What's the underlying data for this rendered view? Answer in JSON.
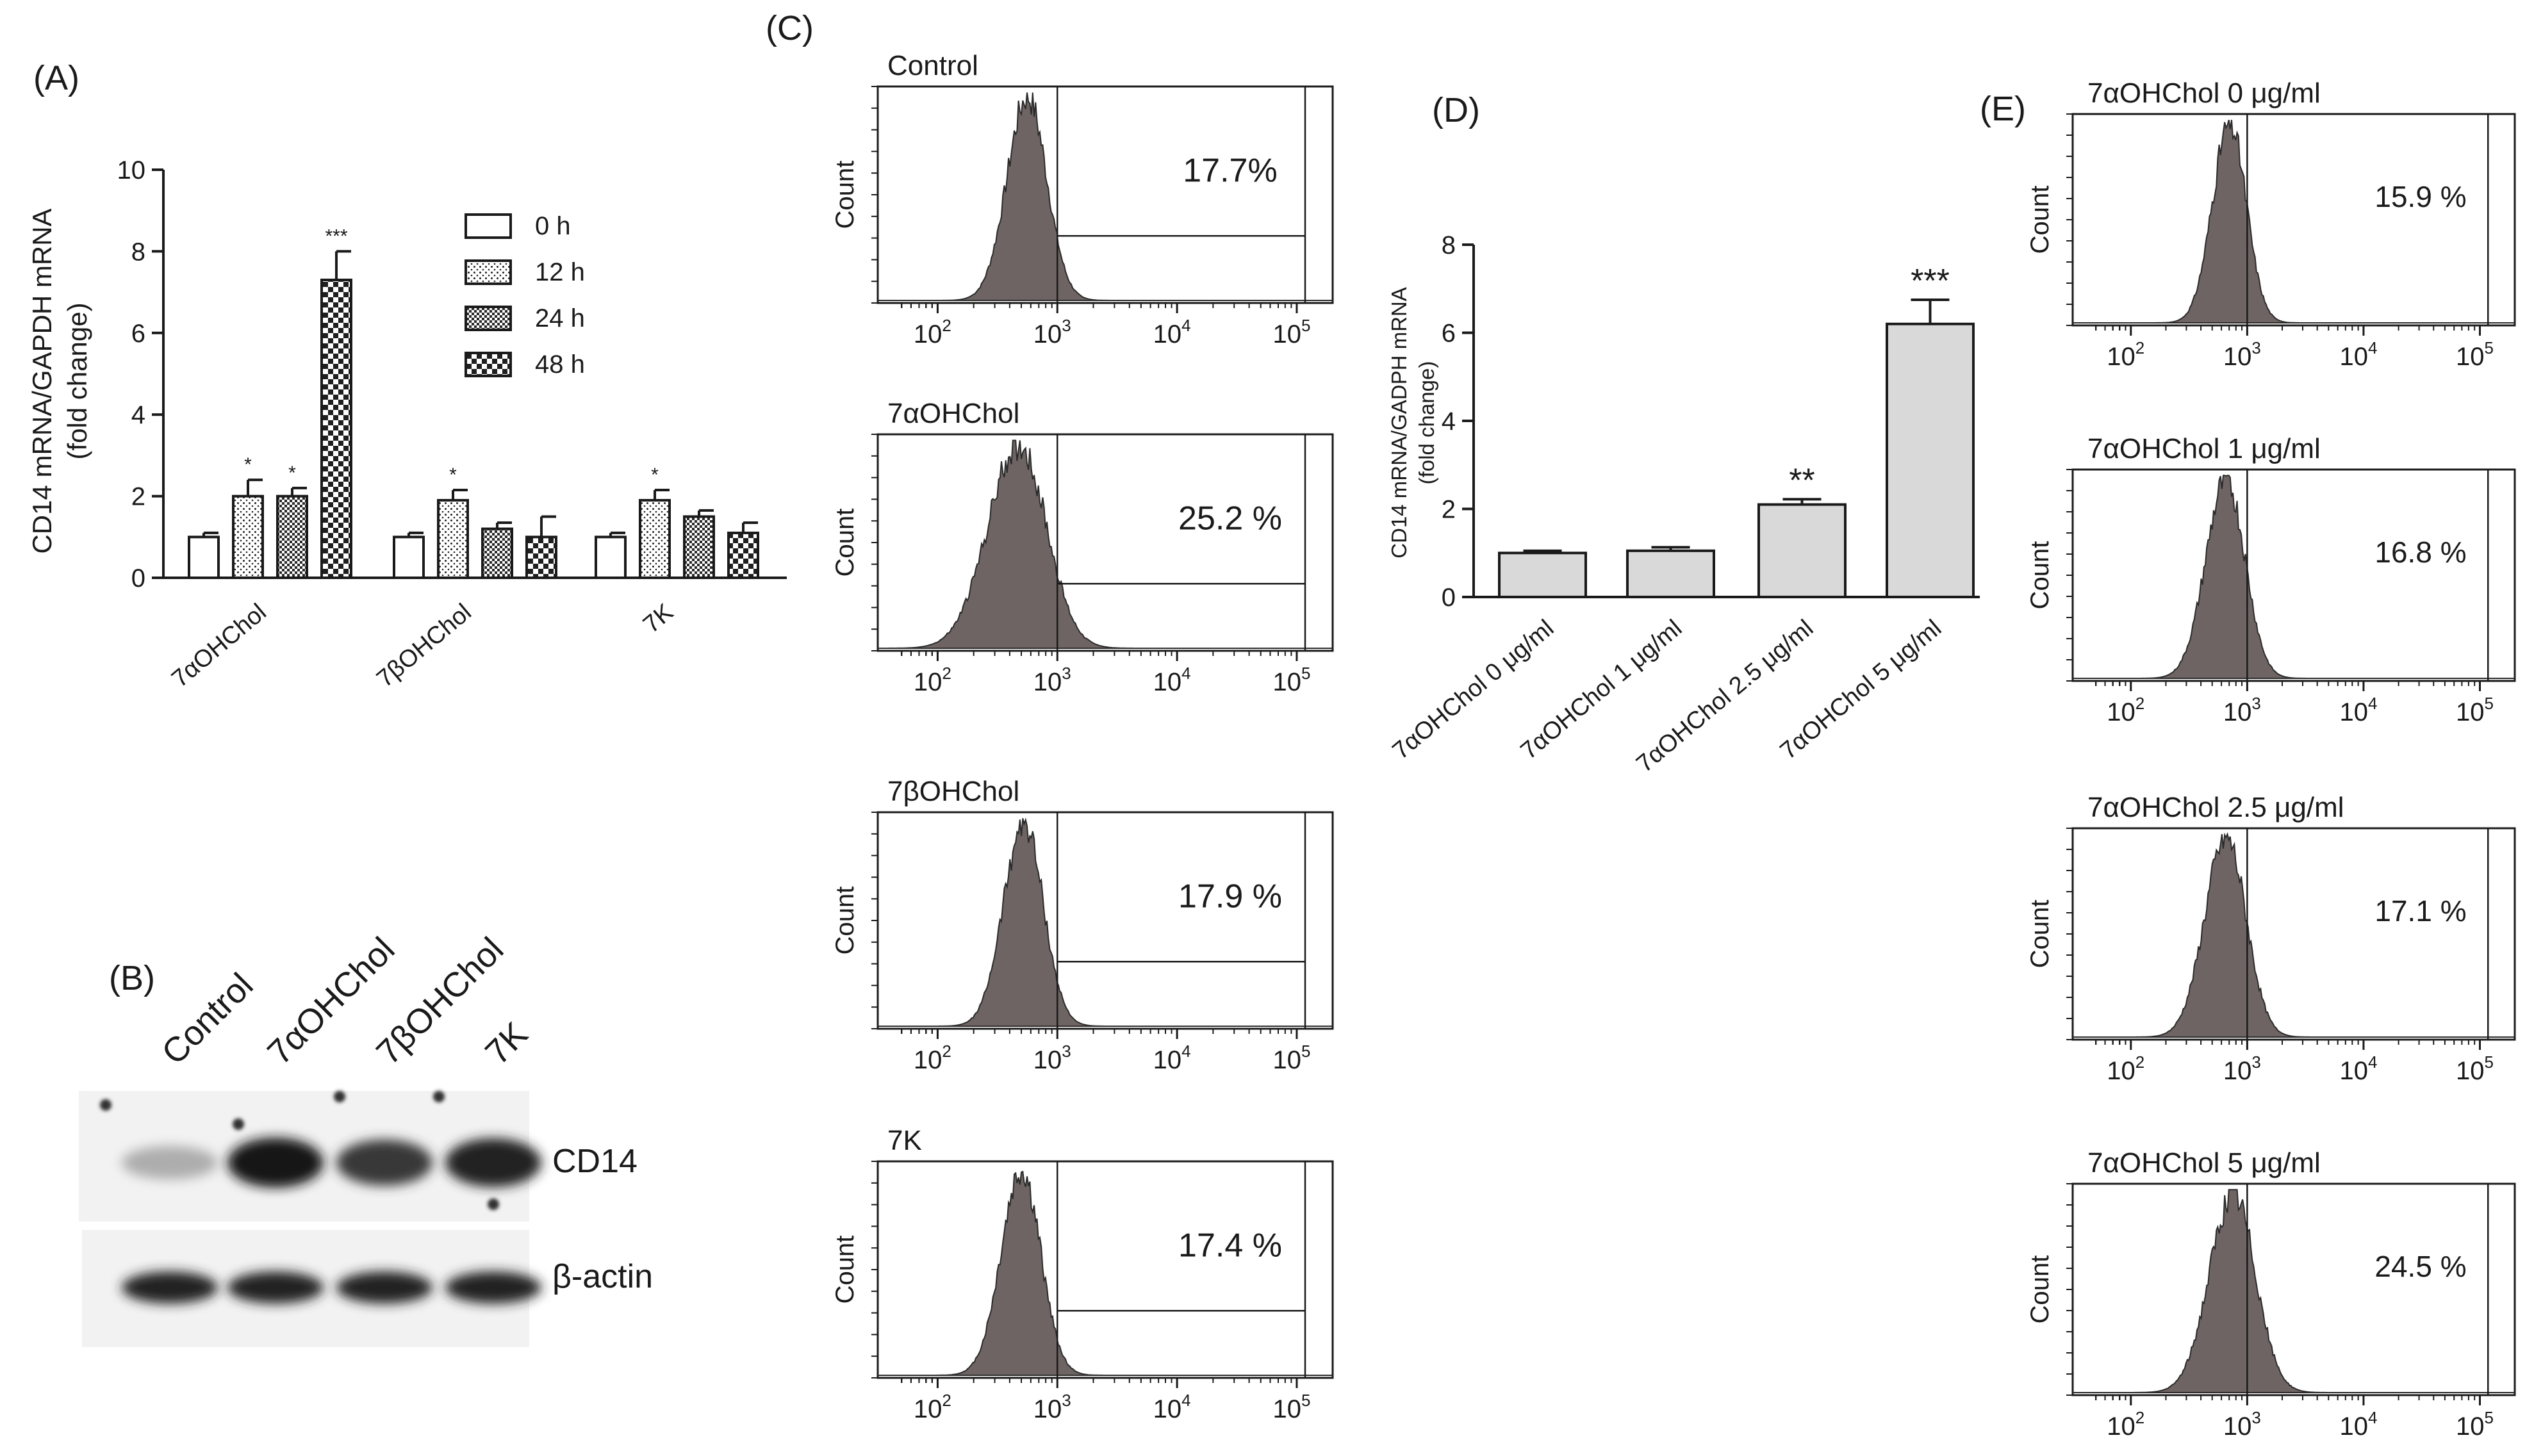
{
  "chart_data": [
    {
      "panel": "(A)",
      "type": "bar",
      "ylabel": "CD14 mRNA/GAPDH mRNA",
      "ylabel2": "(fold change)",
      "ylim": [
        0,
        10
      ],
      "yticks": [
        "0",
        "2",
        "4",
        "6",
        "8",
        "10"
      ],
      "categories": [
        "7αOHChol",
        "7βOHChol",
        "7K"
      ],
      "series": [
        {
          "name": "0 h",
          "pattern": "plain",
          "values": [
            1.0,
            1.0,
            1.0
          ],
          "errors": [
            0.1,
            0.1,
            0.1
          ],
          "stars": [
            "",
            "",
            ""
          ]
        },
        {
          "name": "12 h",
          "pattern": "dots",
          "values": [
            2.0,
            1.9,
            1.9
          ],
          "errors": [
            0.4,
            0.25,
            0.25
          ],
          "stars": [
            "*",
            "*",
            "*"
          ]
        },
        {
          "name": "24 h",
          "pattern": "check",
          "values": [
            2.0,
            1.2,
            1.5
          ],
          "errors": [
            0.2,
            0.15,
            0.15
          ],
          "stars": [
            "*",
            "",
            ""
          ]
        },
        {
          "name": "48 h",
          "pattern": "bigcheck",
          "values": [
            7.3,
            1.0,
            1.1
          ],
          "errors": [
            0.7,
            0.5,
            0.25
          ],
          "stars": [
            "***",
            "",
            ""
          ]
        }
      ]
    },
    {
      "panel": "(C)",
      "type": "histogram",
      "xtick_labels": [
        "10",
        "10",
        "10",
        "10"
      ],
      "xtick_exponents": [
        "2",
        "3",
        "4",
        "5"
      ],
      "ylabel": "Count",
      "plots": [
        {
          "title": "Control",
          "percent": "17.7%",
          "peak": 2.75,
          "width": 0.17,
          "skew": 0.0
        },
        {
          "title": "7αOHChol",
          "percent": "25.2 %",
          "peak": 2.68,
          "width": 0.24,
          "skew": 0.08
        },
        {
          "title": "7βOHChol",
          "percent": "17.9 %",
          "peak": 2.72,
          "width": 0.17,
          "skew": 0.0
        },
        {
          "title": "7K",
          "percent": "17.4 %",
          "peak": 2.7,
          "width": 0.17,
          "skew": 0.0
        }
      ]
    },
    {
      "panel": "(D)",
      "type": "bar",
      "ylabel": "CD14 mRNA/GADPH mRNA",
      "ylabel2": "(fold change)",
      "ylim": [
        0,
        8
      ],
      "yticks": [
        "0",
        "2",
        "4",
        "6",
        "8"
      ],
      "categories": [
        "7αOHChol 0 μg/ml",
        "7αOHChol 1 μg/ml",
        "7αOHChol 2.5 μg/ml",
        "7αOHChol 5 μg/ml"
      ],
      "values": [
        1.0,
        1.05,
        2.1,
        6.2
      ],
      "errors": [
        0.05,
        0.08,
        0.12,
        0.55
      ],
      "stars": [
        "",
        "",
        "**",
        "***"
      ]
    },
    {
      "panel": "(E)",
      "type": "histogram",
      "xtick_labels": [
        "10",
        "10",
        "10",
        "10"
      ],
      "xtick_exponents": [
        "2",
        "3",
        "4",
        "5"
      ],
      "ylabel": "Count",
      "plots": [
        {
          "title": "7αOHChol 0 μg/ml",
          "percent": "15.9 %",
          "peak": 2.85,
          "width": 0.15,
          "skew": 0.0
        },
        {
          "title": "7αOHChol 1 μg/ml",
          "percent": "16.8 %",
          "peak": 2.82,
          "width": 0.17,
          "skew": 0.03
        },
        {
          "title": "7αOHChol 2.5 μg/ml",
          "percent": "17.1 %",
          "peak": 2.82,
          "width": 0.18,
          "skew": 0.03
        },
        {
          "title": "7αOHChol 5 μg/ml",
          "percent": "24.5 %",
          "peak": 2.88,
          "width": 0.2,
          "skew": 0.02
        }
      ]
    }
  ],
  "panels": {
    "a_label": "(A)",
    "b_label": "(B)",
    "c_label": "(C)",
    "d_label": "(D)",
    "e_label": "(E)"
  },
  "western_blot": {
    "lanes": [
      "Control",
      "7αOHChol",
      "7βOHChol",
      "7K"
    ],
    "rows": [
      {
        "label": "CD14",
        "intensity": [
          0.35,
          1.0,
          0.85,
          0.95
        ]
      },
      {
        "label": "β-actin",
        "intensity": [
          0.95,
          0.95,
          0.95,
          0.95
        ]
      }
    ]
  },
  "colors": {
    "histogram_fill": "#6e6463",
    "bar_gray": "#d9d9d9",
    "ink": "#1a1a1a"
  }
}
